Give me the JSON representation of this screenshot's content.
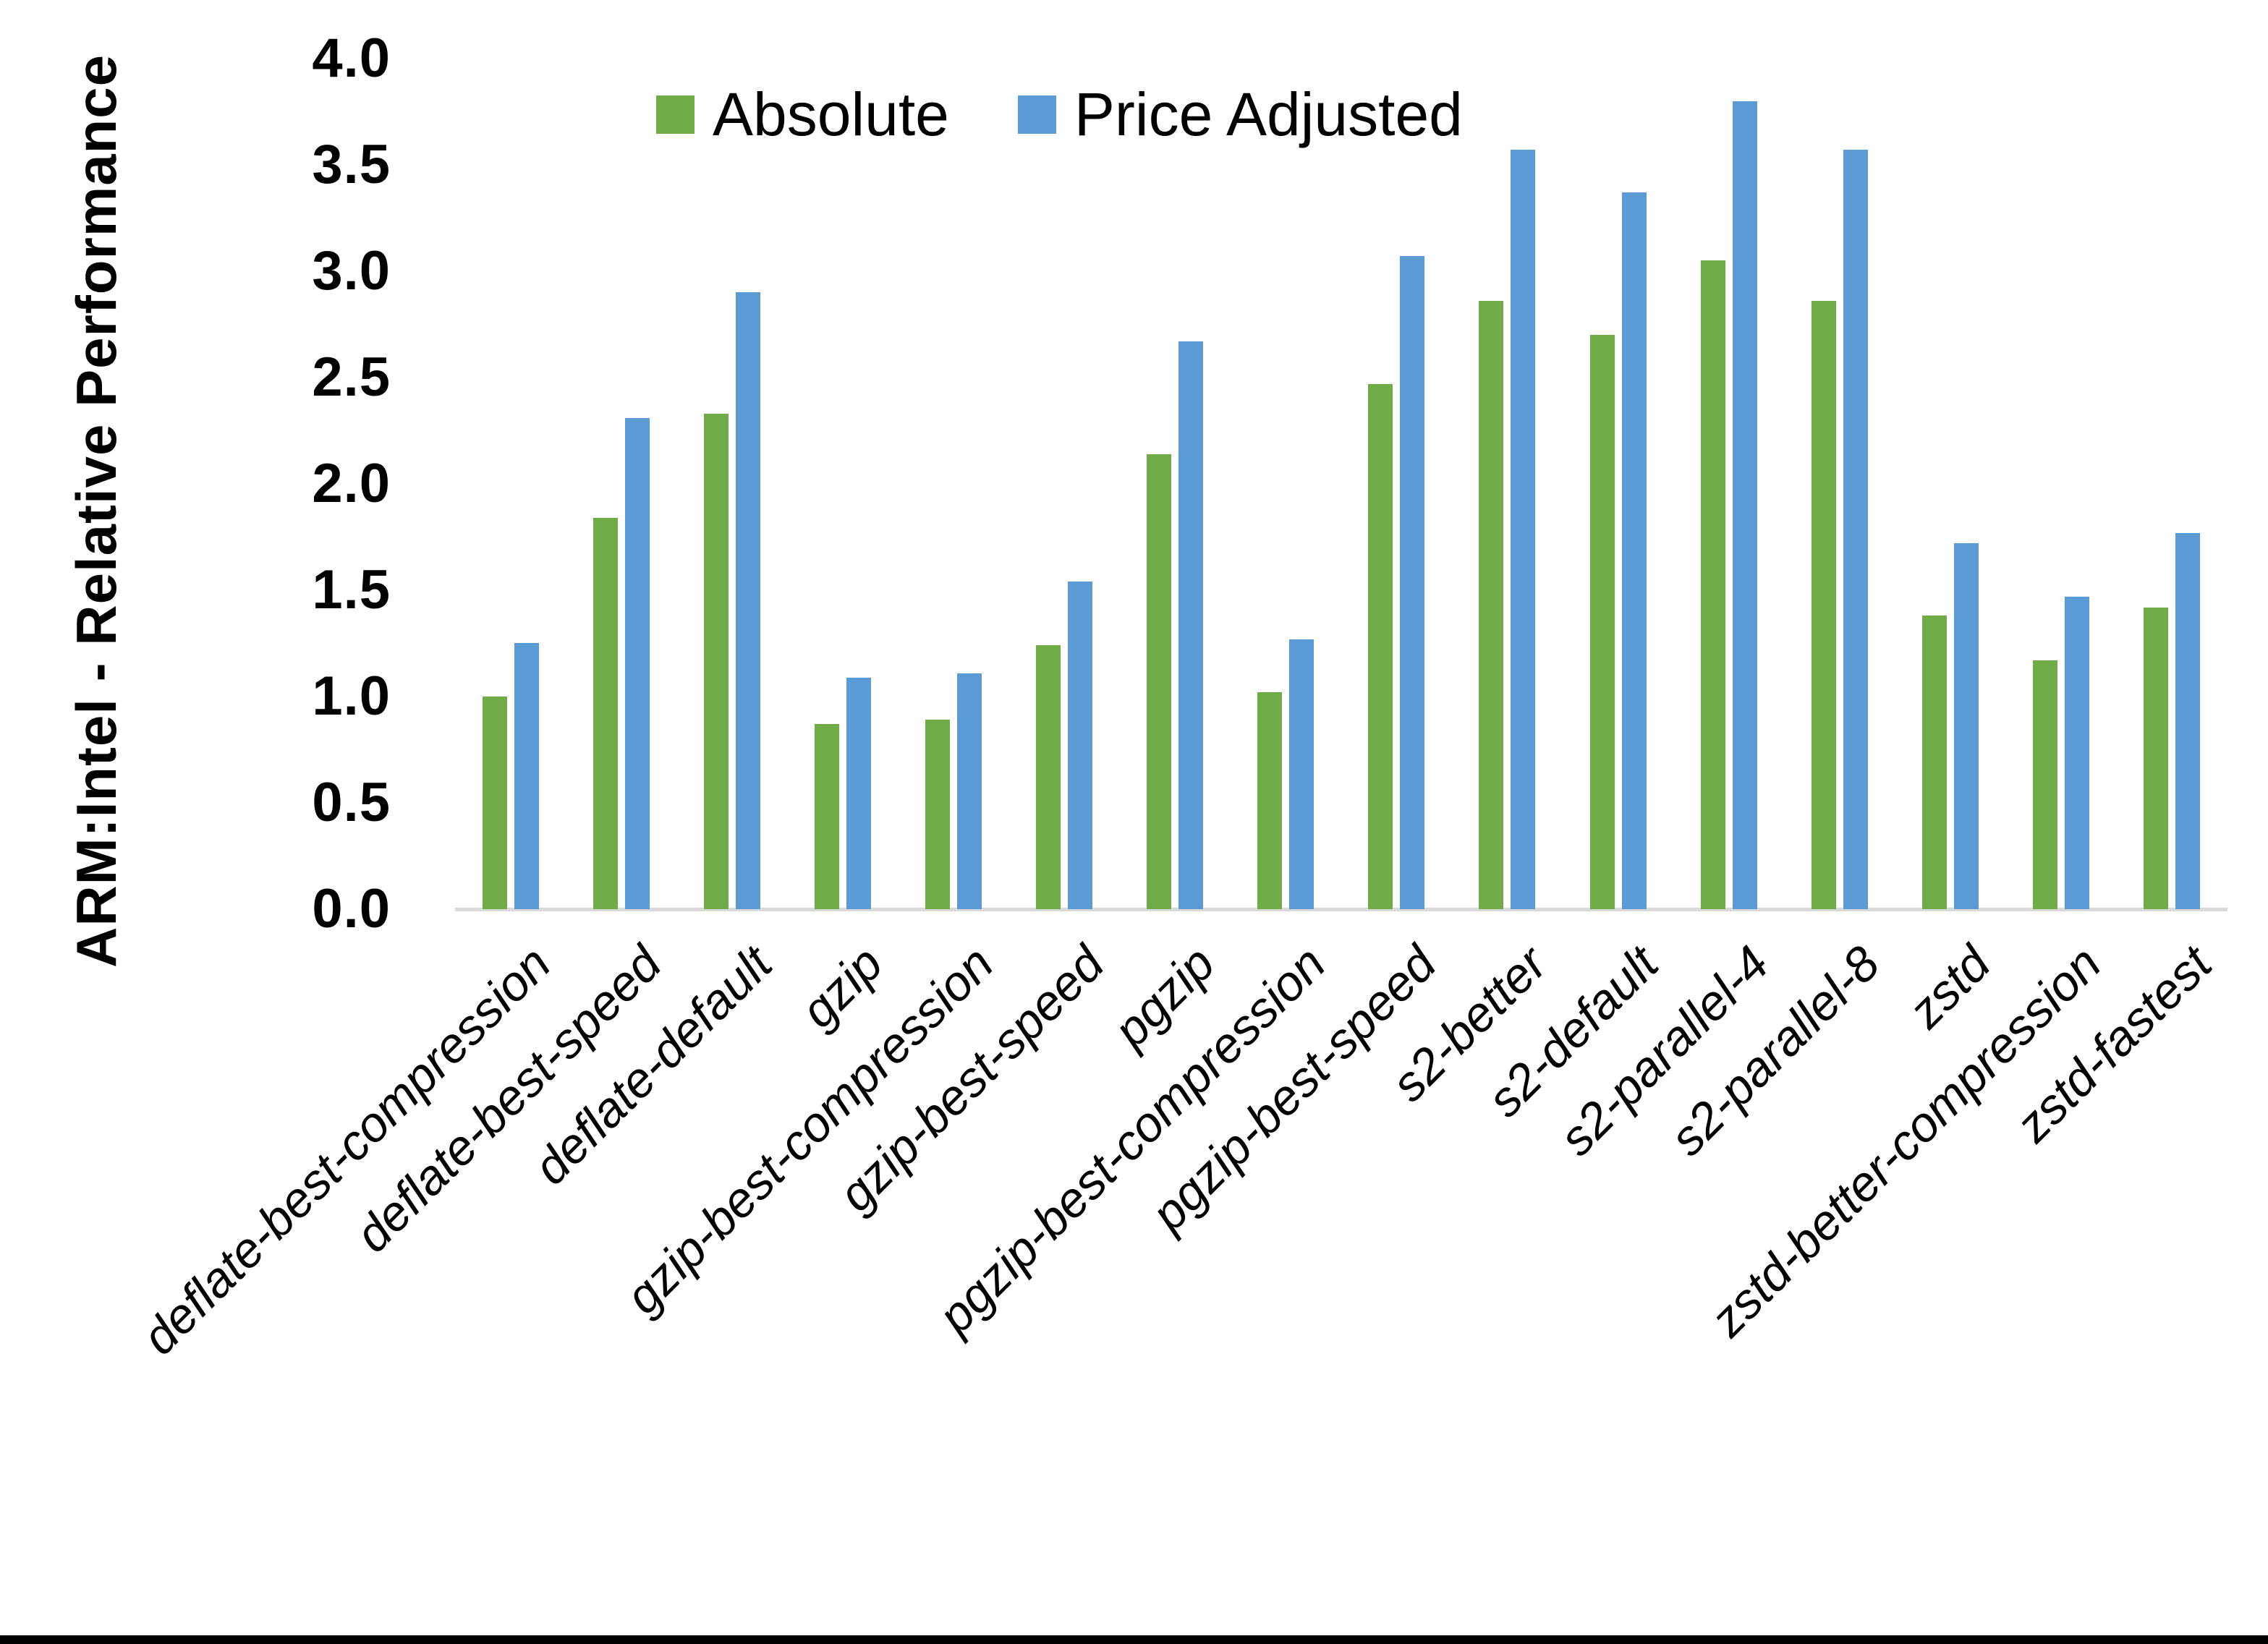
{
  "chart_data": {
    "type": "bar",
    "title": "",
    "ylabel": "ARM:Intel - Relative Performance",
    "xlabel": "",
    "ylim": [
      0.0,
      4.0
    ],
    "ytick_step": 0.5,
    "ytick_labels": [
      "0.0",
      "0.5",
      "1.0",
      "1.5",
      "2.0",
      "2.5",
      "3.0",
      "3.5",
      "4.0"
    ],
    "grid": false,
    "legend_position": "top",
    "categories": [
      "deflate-best-compression",
      "deflate-best-speed",
      "deflate-default",
      "gzip",
      "gzip-best-compression",
      "gzip-best-speed",
      "pgzip",
      "pgzip-best-compression",
      "pgzip-best-speed",
      "s2-better",
      "s2-default",
      "s2-parallel-4",
      "s2-parallel-8",
      "zstd",
      "zstd-better-compression",
      "zstd-fastest"
    ],
    "series": [
      {
        "name": "Absolute",
        "color": "#6FAB47",
        "values": [
          1.0,
          1.84,
          2.33,
          0.87,
          0.89,
          1.24,
          2.14,
          1.02,
          2.47,
          2.86,
          2.7,
          3.05,
          2.86,
          1.38,
          1.17,
          1.42
        ]
      },
      {
        "name": "Price Adjusted",
        "color": "#5B9BD5",
        "values": [
          1.25,
          2.31,
          2.9,
          1.09,
          1.11,
          1.54,
          2.67,
          1.27,
          3.07,
          3.57,
          3.37,
          3.8,
          3.57,
          1.72,
          1.47,
          1.77
        ]
      }
    ],
    "axis_line_color": "#D9D9D9",
    "text_color": "#000000"
  }
}
